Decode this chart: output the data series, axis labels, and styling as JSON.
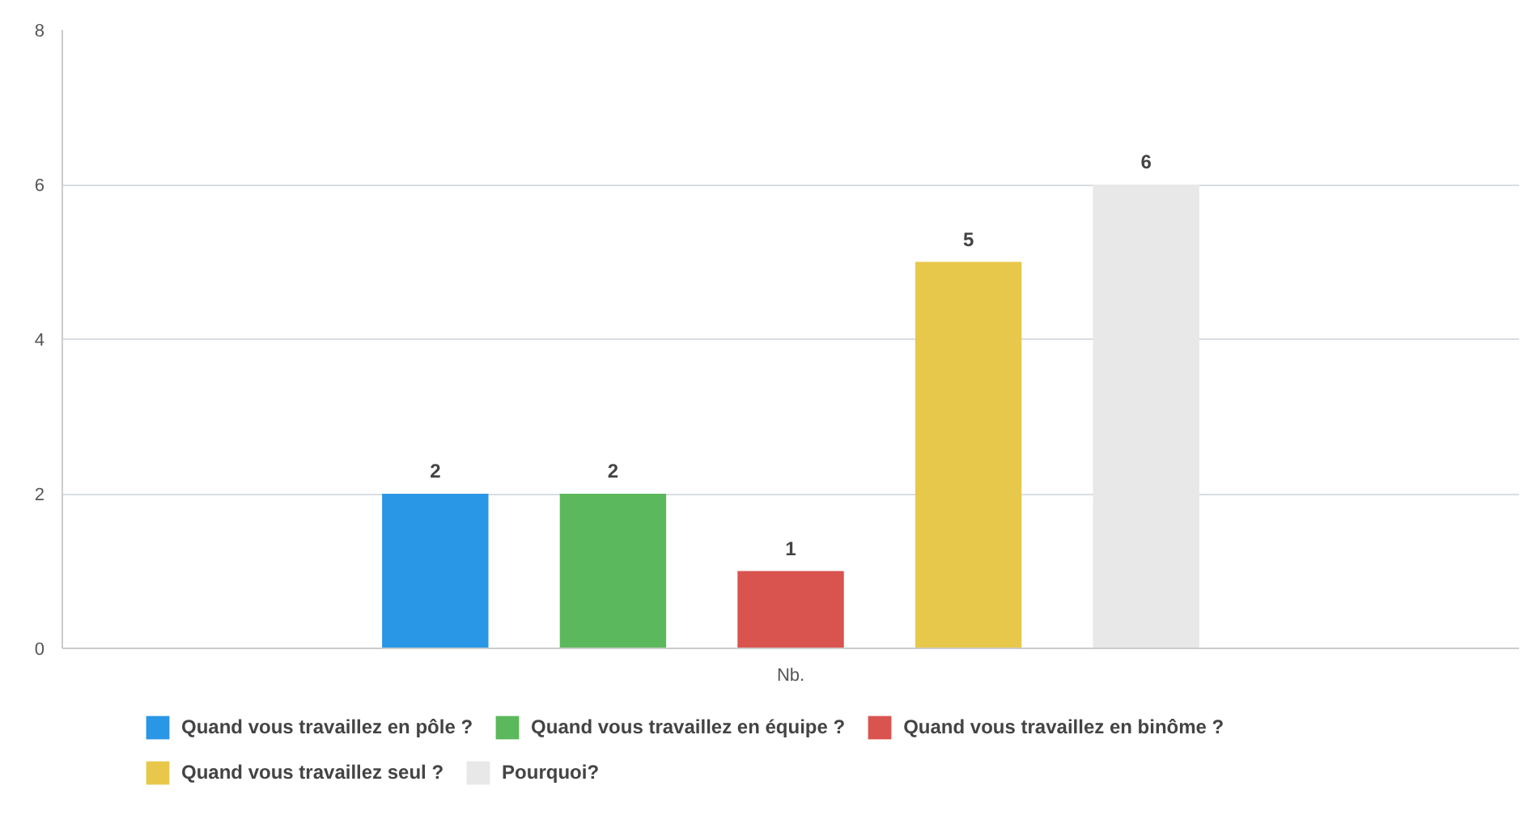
{
  "chart_data": {
    "type": "bar",
    "categories": [
      "Nb."
    ],
    "series": [
      {
        "name": "Quand vous travaillez en pôle ?",
        "color": "#2a96e6",
        "values": [
          2
        ]
      },
      {
        "name": "Quand vous travaillez en équipe ?",
        "color": "#5cb85c",
        "values": [
          2
        ]
      },
      {
        "name": "Quand vous travaillez en binôme ?",
        "color": "#d9534f",
        "values": [
          1
        ]
      },
      {
        "name": "Quand vous travaillez seul ?",
        "color": "#e8c84a",
        "values": [
          5
        ]
      },
      {
        "name": "Pourquoi?",
        "color": "#e8e8e8",
        "values": [
          6
        ]
      }
    ],
    "ylim": [
      0,
      8
    ],
    "yticks": [
      0,
      2,
      4,
      6,
      8
    ],
    "grid": "y",
    "legend": "bottom",
    "data_labels": true
  }
}
